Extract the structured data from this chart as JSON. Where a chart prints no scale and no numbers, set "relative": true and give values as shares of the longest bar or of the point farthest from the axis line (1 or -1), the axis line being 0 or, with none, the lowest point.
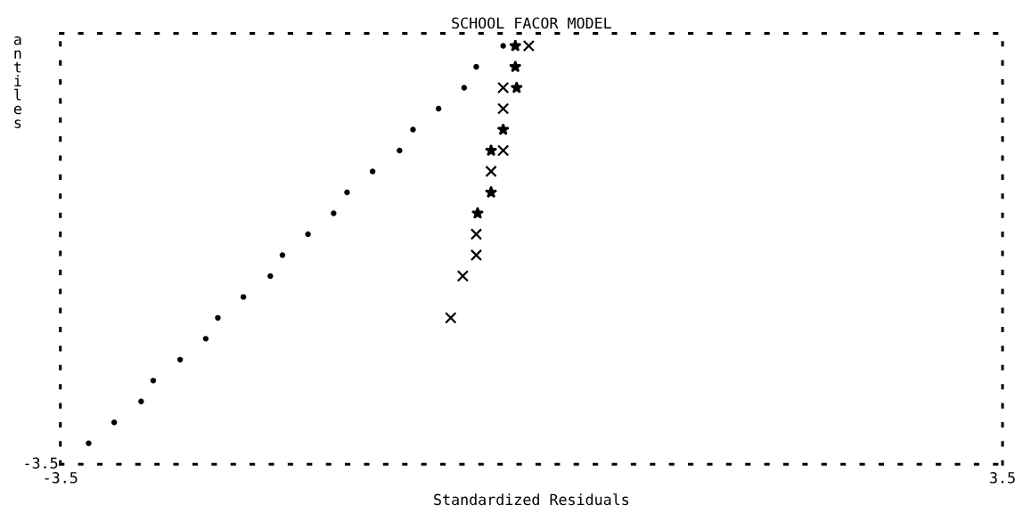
{
  "chart_data": {
    "type": "scatter",
    "title": "SCHOOL FACOR MODEL",
    "xlabel": "Standardized Residuals",
    "ylabel": "antiles",
    "xlim": [
      -3.5,
      3.5
    ],
    "xticks": [
      -3.5,
      3.5
    ],
    "relative": true,
    "annotations": [
      "-3.5"
    ],
    "grid": false,
    "legend": false,
    "series": [
      {
        "color": "#000000",
        "marker": "circle",
        "x": [
          -3.29,
          -3.1,
          -2.9,
          -2.81,
          -2.61,
          -2.42,
          -2.33,
          -2.14,
          -1.94,
          -1.85,
          -1.66,
          -1.47,
          -1.37,
          -1.18,
          -0.98,
          -0.88,
          -0.69,
          -0.5,
          -0.41,
          -0.21
        ],
        "values": [
          0.05,
          0.1,
          0.15,
          0.2,
          0.25,
          0.3,
          0.35,
          0.4,
          0.45,
          0.5,
          0.55,
          0.6,
          0.65,
          0.7,
          0.75,
          0.8,
          0.85,
          0.9,
          0.95,
          1.0
        ]
      },
      {
        "color": "#000000",
        "marker": "cross",
        "x": [
          -0.02,
          -0.21,
          -0.21,
          -0.21,
          -0.3,
          -0.41,
          -0.41,
          -0.51,
          -0.6
        ],
        "values": [
          1.0,
          0.9,
          0.85,
          0.75,
          0.7,
          0.55,
          0.5,
          0.45,
          0.35
        ]
      },
      {
        "color": "#000000",
        "marker": "star",
        "x": [
          -0.12,
          -0.12,
          -0.11,
          -0.21,
          -0.3,
          -0.3,
          -0.4
        ],
        "values": [
          1.0,
          0.95,
          0.9,
          0.8,
          0.75,
          0.65,
          0.6
        ]
      }
    ]
  }
}
